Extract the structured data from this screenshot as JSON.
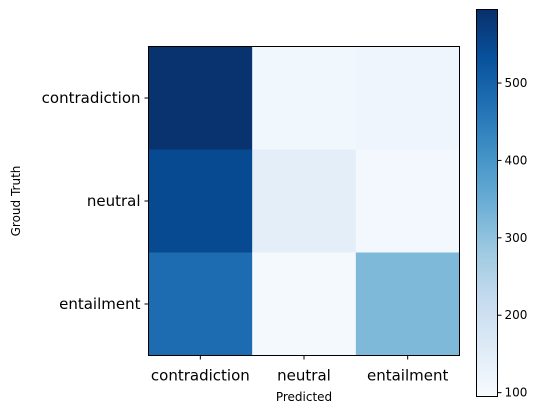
{
  "chart_data": {
    "type": "heatmap",
    "title": "",
    "xlabel": "Predicted",
    "ylabel": "Groud Truth",
    "x_categories": [
      "contradiction",
      "neutral",
      "entailment"
    ],
    "y_categories": [
      "contradiction",
      "neutral",
      "entailment"
    ],
    "values": [
      [
        590,
        112,
        118
      ],
      [
        545,
        145,
        108
      ],
      [
        480,
        102,
        320
      ]
    ],
    "colorbar": {
      "min": 95,
      "max": 595,
      "ticks": [
        100,
        200,
        300,
        400,
        500
      ],
      "colormap": "Blues"
    },
    "grid": false
  }
}
